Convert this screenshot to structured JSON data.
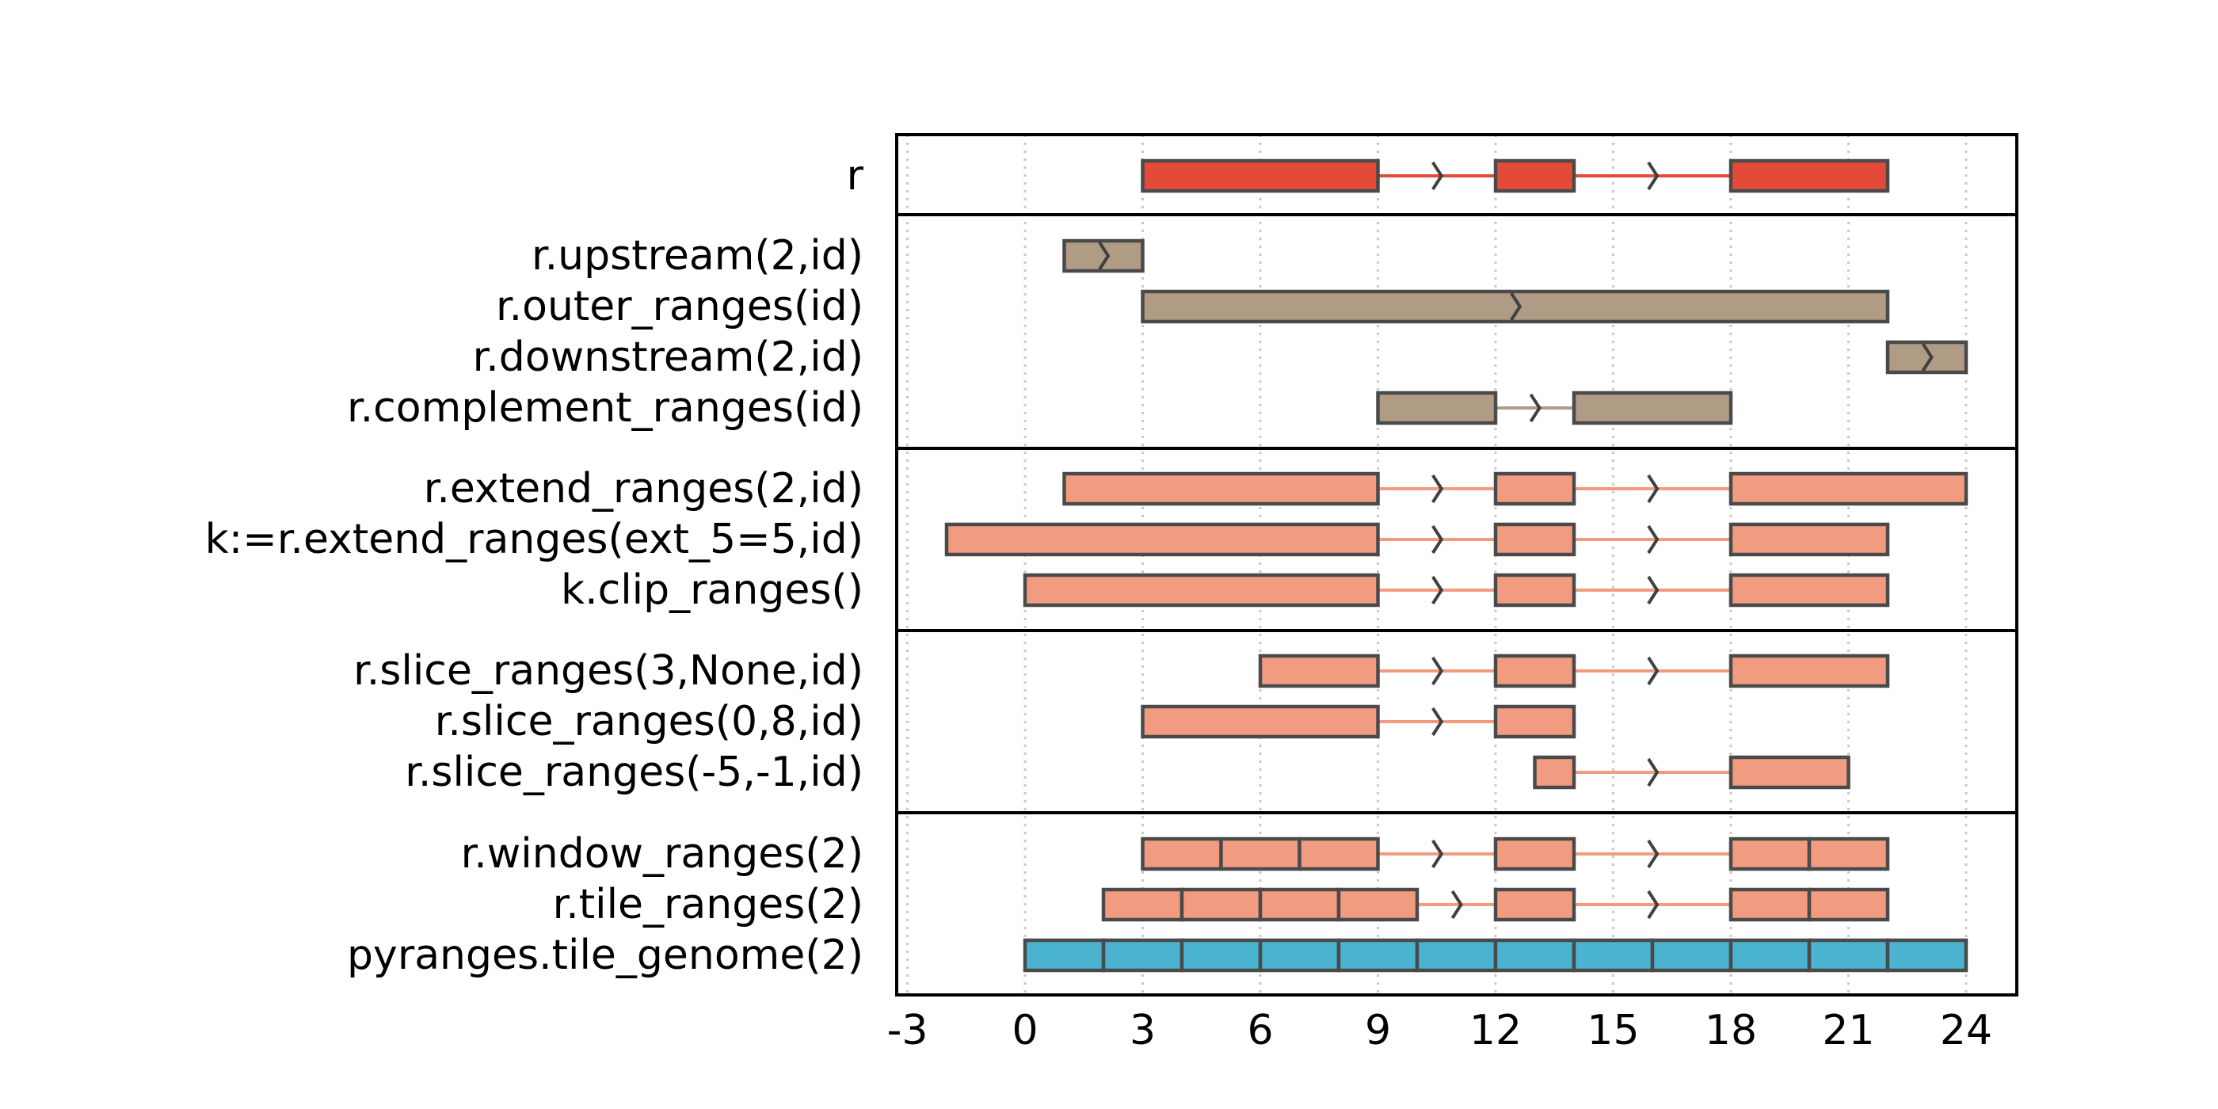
{
  "chart_data": {
    "type": "genomic-tracks",
    "xlim": [
      -3.3,
      25.3
    ],
    "x_ticks": [
      -3,
      0,
      3,
      6,
      9,
      12,
      15,
      18,
      21,
      24
    ],
    "x_tick_labels": [
      "-3",
      "0",
      "3",
      "6",
      "9",
      "12",
      "15",
      "18",
      "21",
      "24"
    ],
    "grid": "vertical dotted at ticks",
    "colors": {
      "red": "#e34b38",
      "tan": "#b09b84",
      "salmon": "#f19c80",
      "blue": "#4ab3d0",
      "outline": "#4a4a4a",
      "intron_arrow": "#404040"
    },
    "panels": [
      {
        "rows": [
          {
            "label": "r",
            "color": "red",
            "intervals": [
              [
                3,
                9
              ],
              [
                12,
                14
              ],
              [
                18,
                22
              ]
            ],
            "arrows": [
              10.5,
              16
            ]
          }
        ]
      },
      {
        "rows": [
          {
            "label": "r.upstream(2,id)",
            "color": "tan",
            "intervals": [
              [
                1,
                3
              ]
            ],
            "arrows": [
              2
            ]
          },
          {
            "label": "r.outer_ranges(id)",
            "color": "tan",
            "intervals": [
              [
                3,
                22
              ]
            ],
            "arrows": [
              12.5
            ]
          },
          {
            "label": "r.downstream(2,id)",
            "color": "tan",
            "intervals": [
              [
                22,
                24
              ]
            ],
            "arrows": [
              23
            ]
          },
          {
            "label": "r.complement_ranges(id)",
            "color": "tan",
            "intervals": [
              [
                9,
                12
              ],
              [
                14,
                18
              ]
            ],
            "arrows": [
              13
            ]
          }
        ]
      },
      {
        "rows": [
          {
            "label": "r.extend_ranges(2,id)",
            "color": "salmon",
            "intervals": [
              [
                1,
                9
              ],
              [
                12,
                14
              ],
              [
                18,
                24
              ]
            ],
            "arrows": [
              10.5,
              16
            ]
          },
          {
            "label": "k:=r.extend_ranges(ext_5=5,id)",
            "color": "salmon",
            "intervals": [
              [
                -2,
                9
              ],
              [
                12,
                14
              ],
              [
                18,
                22
              ]
            ],
            "arrows": [
              10.5,
              16
            ]
          },
          {
            "label": "k.clip_ranges()",
            "color": "salmon",
            "intervals": [
              [
                0,
                9
              ],
              [
                12,
                14
              ],
              [
                18,
                22
              ]
            ],
            "arrows": [
              10.5,
              16
            ]
          }
        ]
      },
      {
        "rows": [
          {
            "label": "r.slice_ranges(3,None,id)",
            "color": "salmon",
            "intervals": [
              [
                6,
                9
              ],
              [
                12,
                14
              ],
              [
                18,
                22
              ]
            ],
            "arrows": [
              10.5,
              16
            ]
          },
          {
            "label": "r.slice_ranges(0,8,id)",
            "color": "salmon",
            "intervals": [
              [
                3,
                9
              ],
              [
                12,
                14
              ]
            ],
            "arrows": [
              10.5
            ]
          },
          {
            "label": "r.slice_ranges(-5,-1,id)",
            "color": "salmon",
            "intervals": [
              [
                13,
                14
              ],
              [
                18,
                21
              ]
            ],
            "arrows": [
              16
            ]
          }
        ]
      },
      {
        "rows": [
          {
            "label": "r.window_ranges(2)",
            "color": "salmon",
            "intervals": [
              [
                3,
                5
              ],
              [
                5,
                7
              ],
              [
                7,
                9
              ],
              [
                12,
                14
              ],
              [
                18,
                20
              ],
              [
                20,
                22
              ]
            ],
            "arrows": [
              10.5,
              16
            ]
          },
          {
            "label": "r.tile_ranges(2)",
            "color": "salmon",
            "intervals": [
              [
                2,
                4
              ],
              [
                4,
                6
              ],
              [
                6,
                8
              ],
              [
                8,
                10
              ],
              [
                12,
                14
              ],
              [
                18,
                20
              ],
              [
                20,
                22
              ]
            ],
            "arrows": [
              11,
              16
            ]
          },
          {
            "label": "pyranges.tile_genome(2)",
            "color": "blue",
            "intervals": [
              [
                0,
                2
              ],
              [
                2,
                4
              ],
              [
                4,
                6
              ],
              [
                6,
                8
              ],
              [
                8,
                10
              ],
              [
                10,
                12
              ],
              [
                12,
                14
              ],
              [
                14,
                16
              ],
              [
                16,
                18
              ],
              [
                18,
                20
              ],
              [
                20,
                22
              ],
              [
                22,
                24
              ]
            ],
            "arrows": []
          }
        ]
      }
    ]
  }
}
